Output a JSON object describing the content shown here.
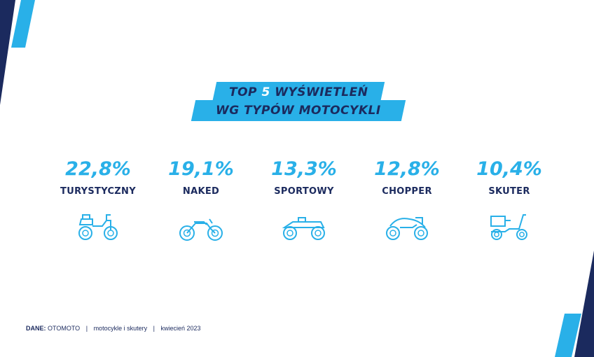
{
  "colors": {
    "navy": "#1b2a5e",
    "accent": "#29b0e8",
    "background": "#ffffff"
  },
  "title": {
    "line1_a": "TOP ",
    "line1_num": "5",
    "line1_b": " WYŚWIETLEŃ",
    "line2": "WG TYPÓW MOTOCYKLI"
  },
  "chart_data": {
    "type": "table",
    "categories": [
      "TURYSTYCZNY",
      "NAKED",
      "SPORTOWY",
      "CHOPPER",
      "SKUTER"
    ],
    "values": [
      22.8,
      19.1,
      13.3,
      12.8,
      10.4
    ],
    "value_labels": [
      "22,8%",
      "19,1%",
      "13,3%",
      "12,8%",
      "10,4%"
    ],
    "icons": [
      "touring-motorcycle-icon",
      "naked-motorcycle-icon",
      "sport-motorcycle-icon",
      "chopper-motorcycle-icon",
      "scooter-icon"
    ],
    "unit": "%"
  },
  "footer": {
    "label": "DANE:",
    "source": "OTOMOTO",
    "segment": "motocykle i skutery",
    "date": "kwiecień 2023",
    "separator": "|"
  }
}
